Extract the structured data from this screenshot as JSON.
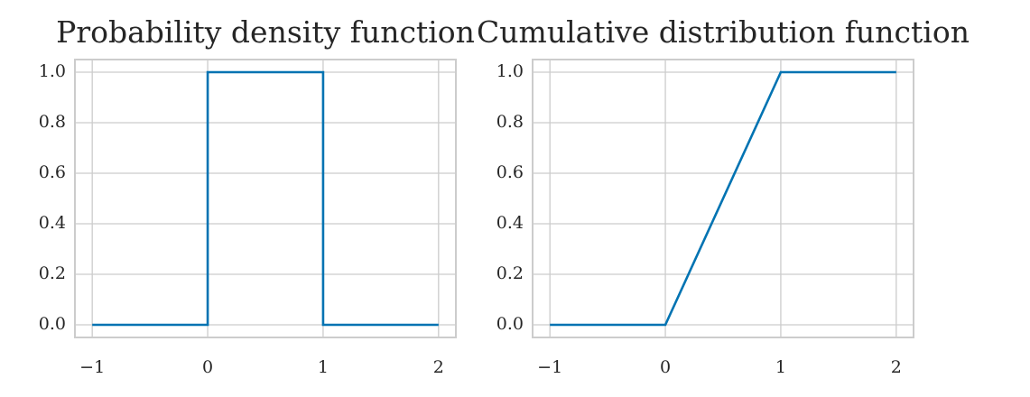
{
  "chart_data": [
    {
      "type": "line",
      "title": "Probability density function",
      "x": [
        -1,
        0,
        0,
        1,
        1,
        2
      ],
      "series": [
        {
          "color": "#0173b2",
          "values": [
            0,
            0,
            1,
            1,
            0,
            0
          ]
        }
      ],
      "xlim": [
        -1.15,
        2.15
      ],
      "ylim": [
        -0.05,
        1.05
      ],
      "xticks": [
        {
          "value": -1,
          "label": "−1"
        },
        0,
        1,
        2
      ],
      "yticks": [
        {
          "value": 0,
          "label": "0.0"
        },
        {
          "value": 0.2,
          "label": "0.2"
        },
        {
          "value": 0.4,
          "label": "0.4"
        },
        {
          "value": 0.6,
          "label": "0.6"
        },
        {
          "value": 0.8,
          "label": "0.8"
        },
        {
          "value": 1,
          "label": "1.0"
        }
      ],
      "grid": true
    },
    {
      "type": "line",
      "title": "Cumulative distribution function",
      "x": [
        -1,
        0,
        1,
        2
      ],
      "series": [
        {
          "color": "#0173b2",
          "values": [
            0,
            0,
            1,
            1
          ]
        }
      ],
      "xlim": [
        -1.15,
        2.15
      ],
      "ylim": [
        -0.05,
        1.05
      ],
      "xticks": [
        {
          "value": -1,
          "label": "−1"
        },
        0,
        1,
        2
      ],
      "yticks": [
        {
          "value": 0,
          "label": "0.0"
        },
        {
          "value": 0.2,
          "label": "0.2"
        },
        {
          "value": 0.4,
          "label": "0.4"
        },
        {
          "value": 0.6,
          "label": "0.6"
        },
        {
          "value": 0.8,
          "label": "0.8"
        },
        {
          "value": 1,
          "label": "1.0"
        }
      ],
      "grid": true
    }
  ]
}
